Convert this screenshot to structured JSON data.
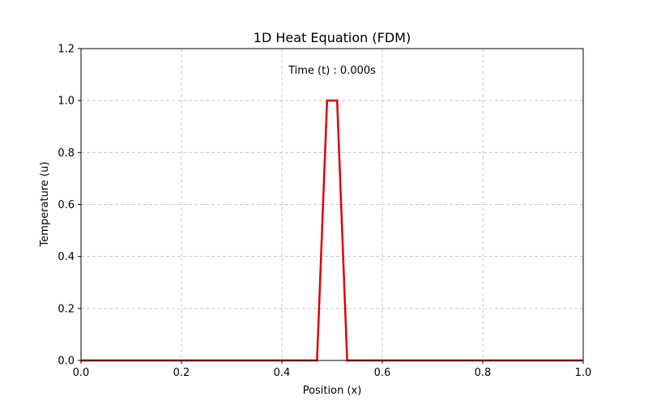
{
  "chart_data": {
    "type": "line",
    "title": "1D Heat Equation (FDM)",
    "xlabel": "Position (x)",
    "ylabel": "Temperature (u)",
    "annotation": "Time (t) : 0.000s",
    "xlim": [
      0.0,
      1.0
    ],
    "ylim": [
      0.0,
      1.2
    ],
    "xticks": [
      "0.0",
      "0.2",
      "0.4",
      "0.6",
      "0.8",
      "1.0"
    ],
    "yticks": [
      "0.0",
      "0.2",
      "0.4",
      "0.6",
      "0.8",
      "1.0",
      "1.2"
    ],
    "grid": true,
    "grid_style": "dashed",
    "series": [
      {
        "color": "#e00000",
        "x": [
          0.0,
          0.47,
          0.49,
          0.51,
          0.53,
          1.0
        ],
        "y": [
          0.0,
          0.0,
          1.0,
          1.0,
          0.0,
          0.0
        ]
      }
    ]
  }
}
